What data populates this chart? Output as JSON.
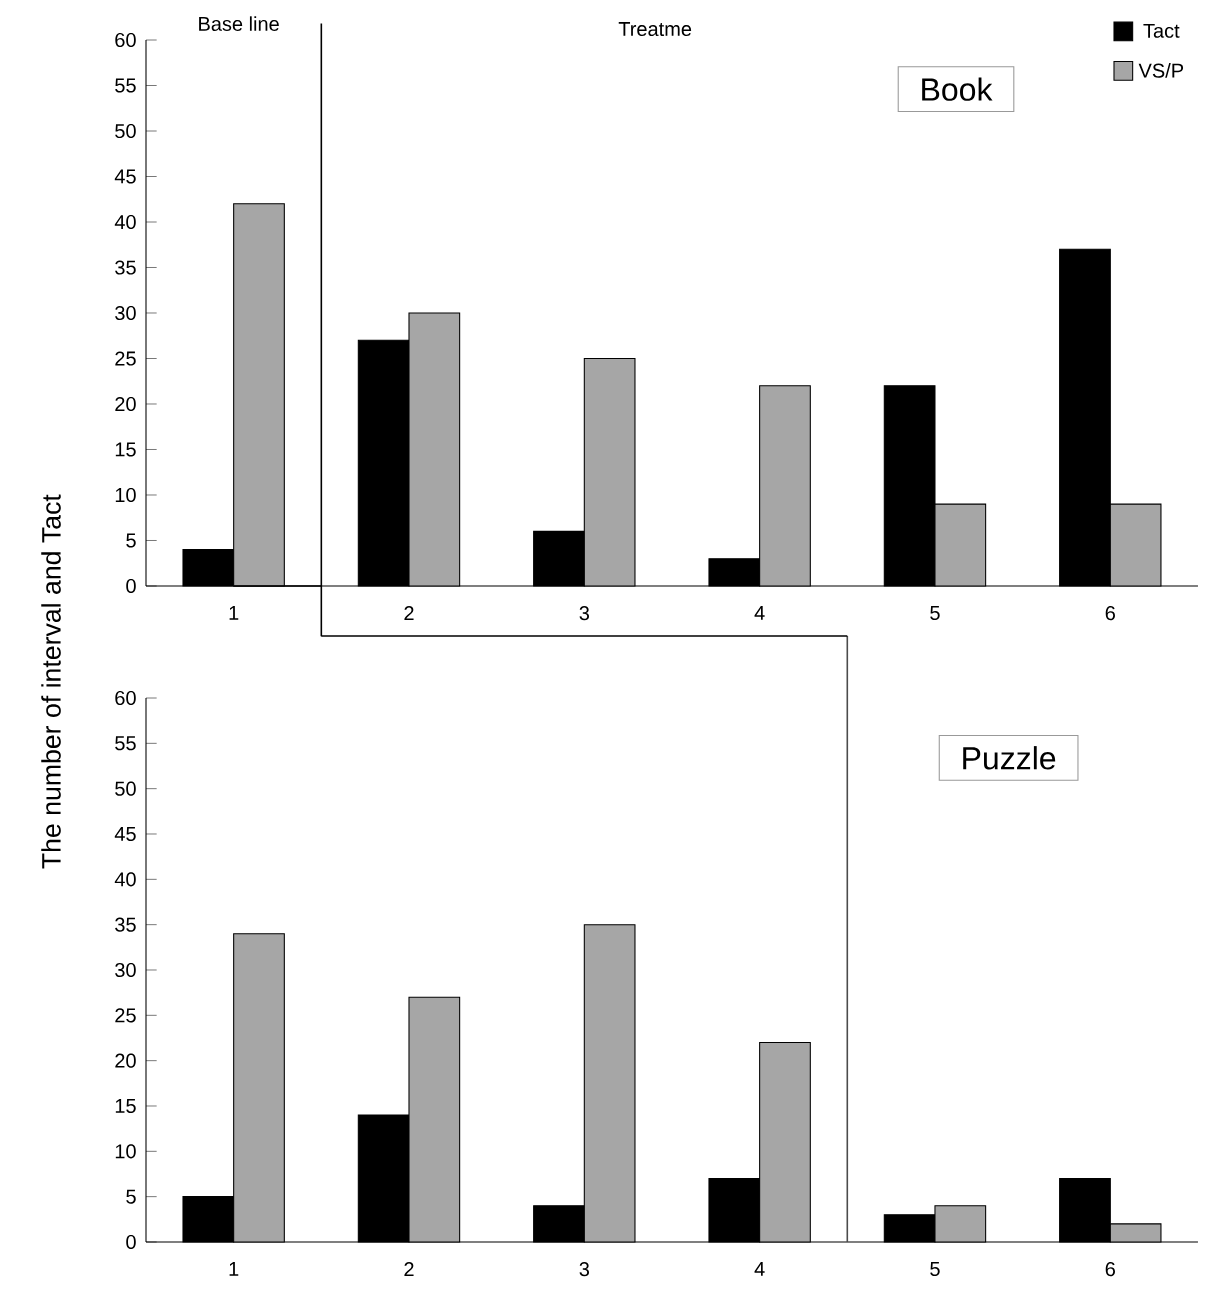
{
  "chart_data": [
    {
      "type": "bar",
      "x": [
        1,
        2,
        3,
        4,
        5,
        6
      ],
      "xlim": [
        0.5,
        6.5
      ],
      "xticks": [
        1,
        2,
        3,
        4,
        5,
        6
      ],
      "ylim": [
        0,
        60
      ],
      "yticks": [
        0,
        5,
        10,
        15,
        20,
        25,
        30,
        35,
        40,
        45,
        50,
        55,
        60
      ],
      "grid": false,
      "legend": "top right",
      "series": [
        {
          "name": "Tact",
          "color": "#000000",
          "values": [
            4,
            27,
            6,
            3,
            22,
            37
          ]
        },
        {
          "name": "VS/P",
          "color": "#a6a6a6",
          "values": [
            42,
            30,
            25,
            22,
            9,
            9
          ]
        }
      ],
      "ref_lines": [
        {
          "axis": "x",
          "value": 1.5
        }
      ],
      "annotations": [
        "Base line",
        "Treatme",
        "Book"
      ]
    },
    {
      "type": "bar",
      "x": [
        1,
        2,
        3,
        4,
        5,
        6
      ],
      "xlim": [
        0.5,
        6.5
      ],
      "xticks": [
        1,
        2,
        3,
        4,
        5,
        6
      ],
      "ylim": [
        0,
        60
      ],
      "yticks": [
        0,
        5,
        10,
        15,
        20,
        25,
        30,
        35,
        40,
        45,
        50,
        55,
        60
      ],
      "grid": false,
      "ylabel": "The number of interval and Tact",
      "series": [
        {
          "color": "#000000",
          "values": [
            5,
            14,
            4,
            7,
            3,
            7
          ]
        },
        {
          "color": "#a6a6a6",
          "values": [
            34,
            27,
            35,
            22,
            4,
            2
          ]
        }
      ],
      "ref_lines": [
        {
          "axis": "x",
          "value": 4.5
        }
      ],
      "annotations": [
        "Puzzle"
      ]
    }
  ]
}
